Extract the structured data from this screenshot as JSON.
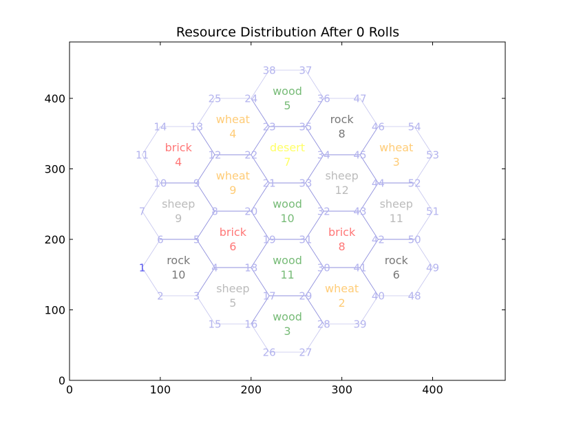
{
  "chart_data": {
    "type": "scatter",
    "title": "Resource Distribution After 0 Rolls",
    "xlabel": "",
    "ylabel": "",
    "xlim": [
      0,
      480
    ],
    "ylim": [
      0,
      480
    ],
    "xticks": [
      0,
      100,
      200,
      300,
      400
    ],
    "yticks": [
      0,
      100,
      200,
      300,
      400
    ],
    "grid": false,
    "colors": {
      "wood": "#77bb77",
      "brick": "#ff7777",
      "sheep": "#bbbbbb",
      "wheat": "#ffcc77",
      "rock": "#777777",
      "desert": "#ffff66",
      "vertex": "#b3b3ee",
      "vertex_highlight": "#5555ee",
      "edge": "#8f8fdd",
      "edge_light": "#c4c4ee"
    },
    "hexes": [
      {
        "resource": "wood",
        "number": "5",
        "x": 240,
        "y": 400
      },
      {
        "resource": "wheat",
        "number": "4",
        "x": 180,
        "y": 360
      },
      {
        "resource": "rock",
        "number": "8",
        "x": 300,
        "y": 360
      },
      {
        "resource": "brick",
        "number": "4",
        "x": 120,
        "y": 320
      },
      {
        "resource": "desert",
        "number": "7",
        "x": 240,
        "y": 320
      },
      {
        "resource": "wheat",
        "number": "3",
        "x": 360,
        "y": 320
      },
      {
        "resource": "wheat",
        "number": "9",
        "x": 180,
        "y": 280
      },
      {
        "resource": "sheep",
        "number": "12",
        "x": 300,
        "y": 280
      },
      {
        "resource": "sheep",
        "number": "9",
        "x": 120,
        "y": 240
      },
      {
        "resource": "wood",
        "number": "10",
        "x": 240,
        "y": 240
      },
      {
        "resource": "sheep",
        "number": "11",
        "x": 360,
        "y": 240
      },
      {
        "resource": "brick",
        "number": "6",
        "x": 180,
        "y": 200
      },
      {
        "resource": "brick",
        "number": "8",
        "x": 300,
        "y": 200
      },
      {
        "resource": "rock",
        "number": "10",
        "x": 120,
        "y": 160
      },
      {
        "resource": "wood",
        "number": "11",
        "x": 240,
        "y": 160
      },
      {
        "resource": "rock",
        "number": "6",
        "x": 360,
        "y": 160
      },
      {
        "resource": "sheep",
        "number": "5",
        "x": 180,
        "y": 120
      },
      {
        "resource": "wheat",
        "number": "2",
        "x": 300,
        "y": 120
      },
      {
        "resource": "wood",
        "number": "3",
        "x": 240,
        "y": 80
      }
    ],
    "vertices": [
      {
        "label": "1",
        "x": 80,
        "y": 160,
        "highlight": true
      },
      {
        "label": "2",
        "x": 100,
        "y": 120
      },
      {
        "label": "3",
        "x": 140,
        "y": 120
      },
      {
        "label": "4",
        "x": 160,
        "y": 160
      },
      {
        "label": "5",
        "x": 140,
        "y": 200
      },
      {
        "label": "6",
        "x": 100,
        "y": 200
      },
      {
        "label": "7",
        "x": 80,
        "y": 240
      },
      {
        "label": "8",
        "x": 160,
        "y": 240
      },
      {
        "label": "9",
        "x": 140,
        "y": 280
      },
      {
        "label": "10",
        "x": 100,
        "y": 280
      },
      {
        "label": "11",
        "x": 80,
        "y": 320
      },
      {
        "label": "12",
        "x": 160,
        "y": 320
      },
      {
        "label": "13",
        "x": 140,
        "y": 360
      },
      {
        "label": "14",
        "x": 100,
        "y": 360
      },
      {
        "label": "15",
        "x": 160,
        "y": 80
      },
      {
        "label": "16",
        "x": 200,
        "y": 80
      },
      {
        "label": "17",
        "x": 220,
        "y": 120
      },
      {
        "label": "18",
        "x": 200,
        "y": 160
      },
      {
        "label": "19",
        "x": 220,
        "y": 200
      },
      {
        "label": "20",
        "x": 200,
        "y": 240
      },
      {
        "label": "21",
        "x": 220,
        "y": 280
      },
      {
        "label": "22",
        "x": 200,
        "y": 320
      },
      {
        "label": "23",
        "x": 220,
        "y": 360
      },
      {
        "label": "24",
        "x": 200,
        "y": 400
      },
      {
        "label": "25",
        "x": 160,
        "y": 400
      },
      {
        "label": "26",
        "x": 220,
        "y": 40
      },
      {
        "label": "27",
        "x": 260,
        "y": 40
      },
      {
        "label": "28",
        "x": 280,
        "y": 80
      },
      {
        "label": "29",
        "x": 260,
        "y": 120
      },
      {
        "label": "30",
        "x": 280,
        "y": 160
      },
      {
        "label": "31",
        "x": 260,
        "y": 200
      },
      {
        "label": "32",
        "x": 280,
        "y": 240
      },
      {
        "label": "33",
        "x": 260,
        "y": 280
      },
      {
        "label": "34",
        "x": 280,
        "y": 320
      },
      {
        "label": "35",
        "x": 260,
        "y": 360
      },
      {
        "label": "36",
        "x": 280,
        "y": 400
      },
      {
        "label": "37",
        "x": 260,
        "y": 440
      },
      {
        "label": "38",
        "x": 220,
        "y": 440
      },
      {
        "label": "39",
        "x": 320,
        "y": 80
      },
      {
        "label": "40",
        "x": 340,
        "y": 120
      },
      {
        "label": "41",
        "x": 320,
        "y": 160
      },
      {
        "label": "42",
        "x": 340,
        "y": 200
      },
      {
        "label": "43",
        "x": 320,
        "y": 240
      },
      {
        "label": "44",
        "x": 340,
        "y": 280
      },
      {
        "label": "45",
        "x": 320,
        "y": 320
      },
      {
        "label": "46",
        "x": 340,
        "y": 360
      },
      {
        "label": "47",
        "x": 320,
        "y": 400
      },
      {
        "label": "48",
        "x": 380,
        "y": 120
      },
      {
        "label": "49",
        "x": 400,
        "y": 160
      },
      {
        "label": "50",
        "x": 380,
        "y": 200
      },
      {
        "label": "51",
        "x": 400,
        "y": 240
      },
      {
        "label": "52",
        "x": 380,
        "y": 280
      },
      {
        "label": "53",
        "x": 400,
        "y": 320
      },
      {
        "label": "54",
        "x": 380,
        "y": 360
      }
    ]
  }
}
